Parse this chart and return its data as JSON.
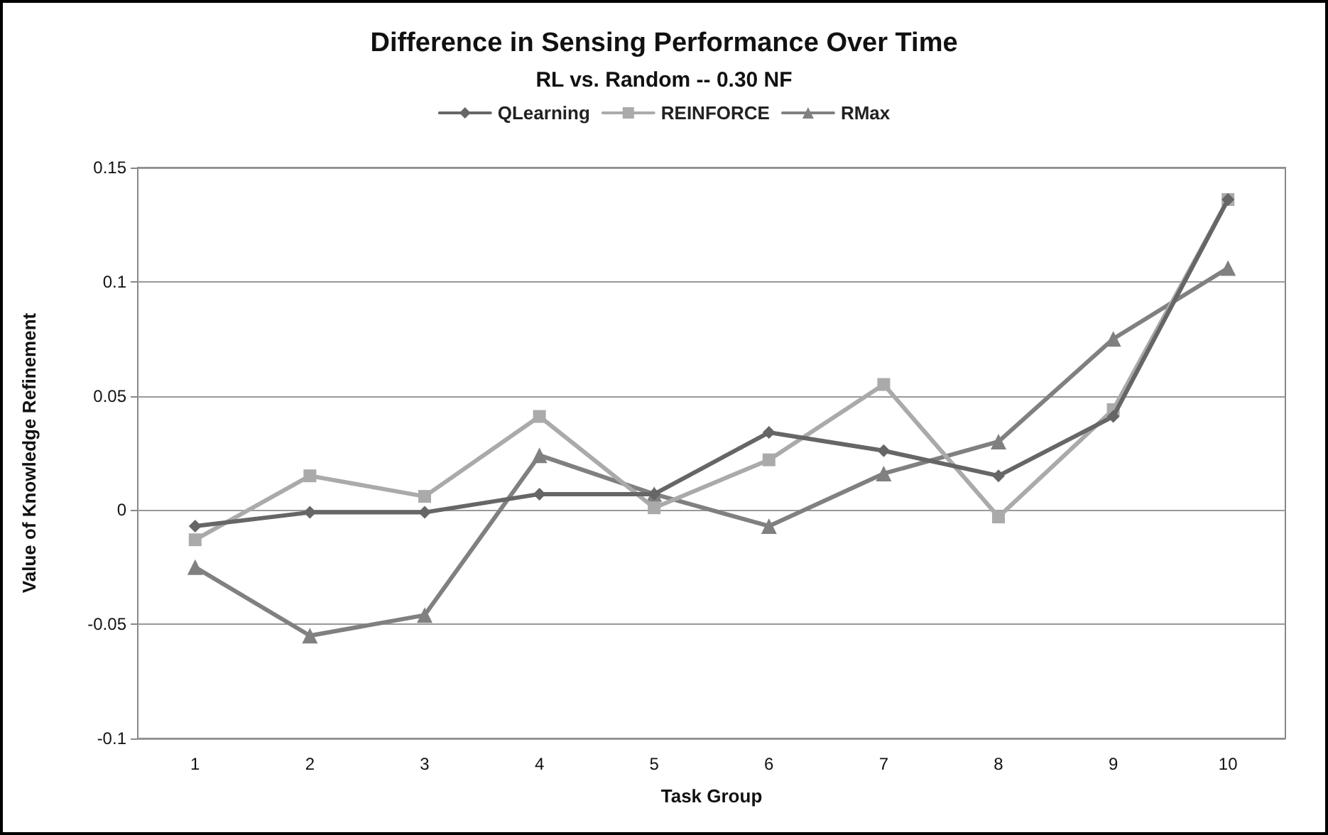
{
  "chart_data": {
    "type": "line",
    "title": "Difference in Sensing Performance Over Time",
    "subtitle": "RL vs. Random -- 0.30 NF",
    "xlabel": "Task Group",
    "ylabel": "Value of Knowledge Refinement",
    "categories": [
      "1",
      "2",
      "3",
      "4",
      "5",
      "6",
      "7",
      "8",
      "9",
      "10"
    ],
    "series": [
      {
        "name": "QLearning",
        "color": "#666666",
        "marker": "diamond",
        "values": [
          -0.007,
          -0.001,
          -0.001,
          0.007,
          0.007,
          0.034,
          0.026,
          0.015,
          0.041,
          0.136
        ]
      },
      {
        "name": "REINFORCE",
        "color": "#aaaaaa",
        "marker": "square",
        "values": [
          -0.013,
          0.015,
          0.006,
          0.041,
          0.001,
          0.022,
          0.055,
          -0.003,
          0.044,
          0.136
        ]
      },
      {
        "name": "RMax",
        "color": "#808080",
        "marker": "triangle",
        "values": [
          -0.025,
          -0.055,
          -0.046,
          0.024,
          0.007,
          -0.007,
          0.016,
          0.03,
          0.075,
          0.106
        ]
      }
    ],
    "ylim": [
      -0.1,
      0.15
    ],
    "yticks": [
      -0.1,
      -0.05,
      0,
      0.05,
      0.1,
      0.15
    ],
    "grid": "y",
    "legend": "top",
    "line_style": "solid"
  }
}
